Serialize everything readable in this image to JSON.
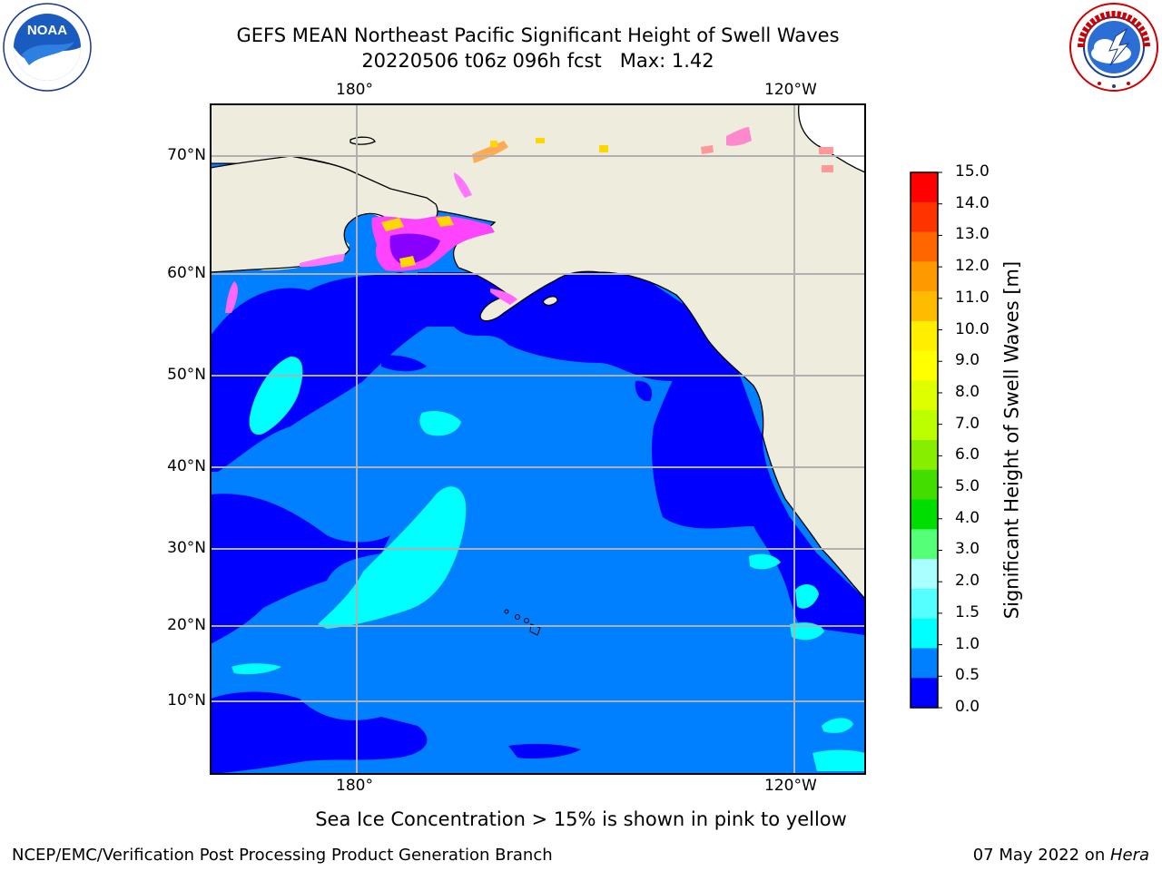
{
  "title": {
    "line1": "GEFS MEAN Northeast Pacific Significant Height of Swell Waves",
    "line2": "20220506 t06z 096h fcst   Max: 1.42"
  },
  "logos": {
    "noaa": {
      "icon": "noaa-logo",
      "text": "NOAA"
    },
    "nws": {
      "icon": "nws-logo",
      "text": "NATIONAL WEATHER SERVICE"
    }
  },
  "map": {
    "lon_labels": [
      "180°",
      "120°W"
    ],
    "lat_labels": [
      "70°N",
      "60°N",
      "50°N",
      "40°N",
      "30°N",
      "20°N",
      "10°N"
    ],
    "colors": {
      "land": "#eeeddd",
      "deep_blue": "#0000ff",
      "mid_blue": "#0080ff",
      "cyan": "#00ffff",
      "grid": "#b0b0b0",
      "ice_pink": "#ff44ff",
      "ice_yellow": "#ffd700"
    }
  },
  "colorbar": {
    "title": "Significant Height of Swell Waves [m]",
    "ticks": [
      "15.0",
      "14.0",
      "13.0",
      "12.0",
      "11.0",
      "10.0",
      "9.0",
      "8.0",
      "7.0",
      "6.0",
      "5.0",
      "4.0",
      "3.0",
      "2.0",
      "1.5",
      "1.0",
      "0.5",
      "0.0"
    ],
    "colors": [
      "#ff0000",
      "#ff3300",
      "#ff6600",
      "#ff9900",
      "#ffbb00",
      "#ffee00",
      "#ffff00",
      "#ddff00",
      "#bbff00",
      "#88ee00",
      "#44dd00",
      "#00dd00",
      "#55ff77",
      "#aaffff",
      "#55ffff",
      "#00ffff",
      "#0080ff",
      "#0000ff"
    ]
  },
  "note": "Sea Ice Concentration > 15% is shown in pink to yellow",
  "footer": {
    "left": "NCEP/EMC/Verification Post Processing Product Generation Branch",
    "right_date": "07 May 2022 on ",
    "right_host": "Hera"
  }
}
